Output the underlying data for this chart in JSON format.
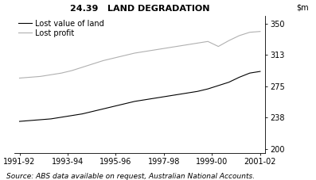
{
  "title": "24.39   LAND DEGRADATION",
  "source_text": "Source: ABS data available on request, Australian National Accounts.",
  "yticks": [
    200,
    238,
    275,
    313,
    350
  ],
  "xlabels": [
    "1991-92",
    "1993-94",
    "1995-96",
    "1997-98",
    "1999-00",
    "2001-02"
  ],
  "lost_value_land": [
    233,
    234,
    235,
    236,
    238,
    240,
    242,
    245,
    248,
    251,
    254,
    257,
    259,
    261,
    263,
    265,
    267,
    269,
    272,
    276,
    280,
    286,
    291,
    293
  ],
  "lost_profit": [
    285,
    286,
    287,
    289,
    291,
    294,
    298,
    302,
    306,
    309,
    312,
    315,
    317,
    319,
    321,
    323,
    325,
    327,
    329,
    323,
    330,
    336,
    340,
    341
  ],
  "line_color_land": "#000000",
  "line_color_profit": "#b0b0b0",
  "background_color": "#ffffff",
  "ylim": [
    195,
    360
  ],
  "xlim": [
    -0.5,
    23.5
  ],
  "title_fontsize": 8,
  "legend_fontsize": 7,
  "tick_fontsize": 7,
  "source_fontsize": 6.5
}
